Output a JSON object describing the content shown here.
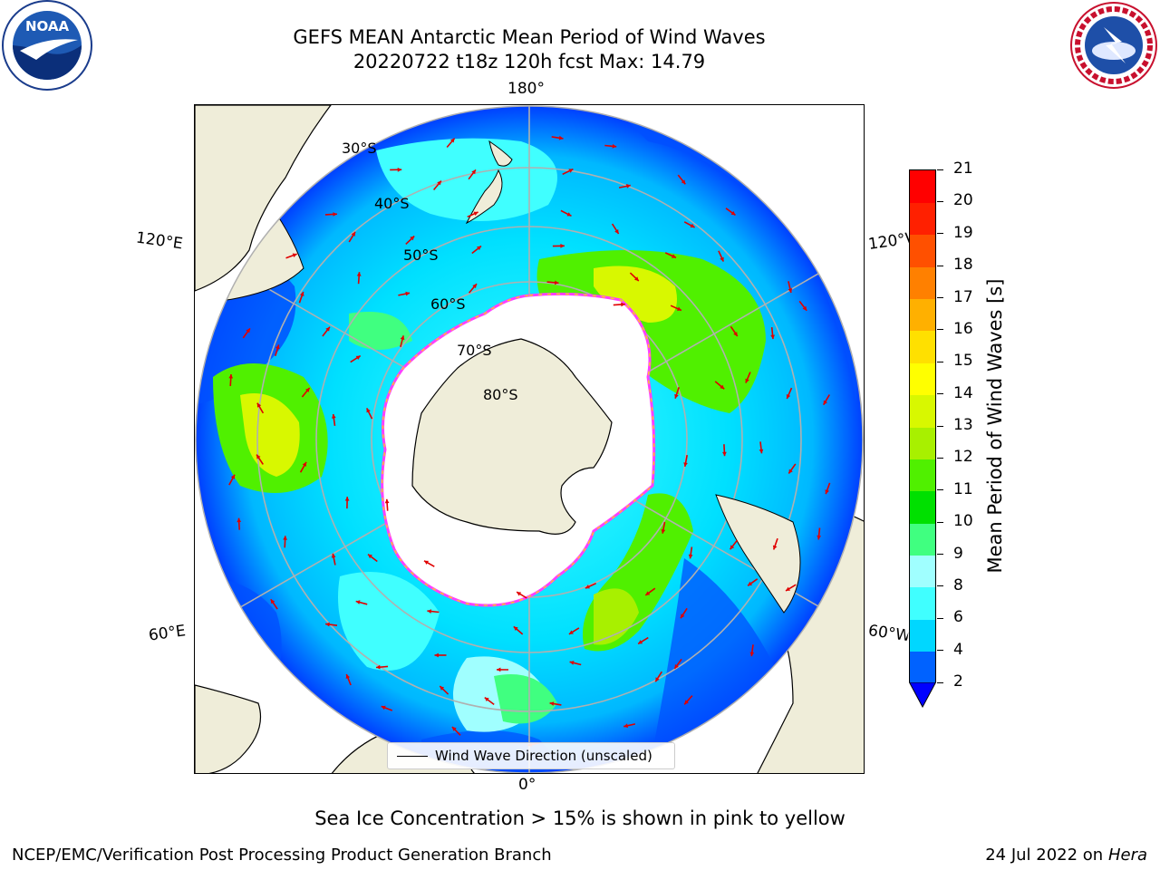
{
  "title_line1": "GEFS MEAN Antarctic Mean Period of Wind Waves",
  "title_line2": "20220722 t18z 120h fcst   Max: 14.79",
  "logos": {
    "left": "noaa-logo",
    "right": "national-weather-service-logo"
  },
  "map": {
    "projection": "south-polar-stereographic",
    "lon_labels": {
      "top": "180°",
      "bottom": "0°",
      "left_upper": "120°E",
      "left_lower": "60°E",
      "right_upper": "120°W",
      "right_lower": "60°W"
    },
    "lat_labels": [
      "30°S",
      "40°S",
      "50°S",
      "60°S",
      "70°S",
      "80°S"
    ],
    "land_color": "#efedd9",
    "ice_edge_colors": [
      "#ff40ff",
      "#ffb000",
      "#ffff40"
    ],
    "legend_text": "Wind Wave Direction (unscaled)"
  },
  "colorbar": {
    "label": "Mean Period of Wind Waves [s]",
    "ticks": [
      "2",
      "4",
      "6",
      "8",
      "9",
      "10",
      "11",
      "12",
      "13",
      "14",
      "15",
      "16",
      "17",
      "18",
      "19",
      "20",
      "21"
    ],
    "colors": [
      "#0062ff",
      "#00d7ff",
      "#40ffff",
      "#a0ffff",
      "#40ff80",
      "#00e000",
      "#50f000",
      "#a8f000",
      "#d8f800",
      "#ffff00",
      "#ffe000",
      "#ffb000",
      "#ff8000",
      "#ff5000",
      "#ff2000",
      "#ff0000"
    ],
    "under_color": "#0000ff",
    "extend": "min"
  },
  "bottom_note": "Sea Ice Concentration > 15% is shown in pink to yellow",
  "footer_left": "NCEP/EMC/Verification Post Processing Product Generation Branch",
  "footer_right_date": "24 Jul 2022 on ",
  "footer_right_host": "Hera"
}
